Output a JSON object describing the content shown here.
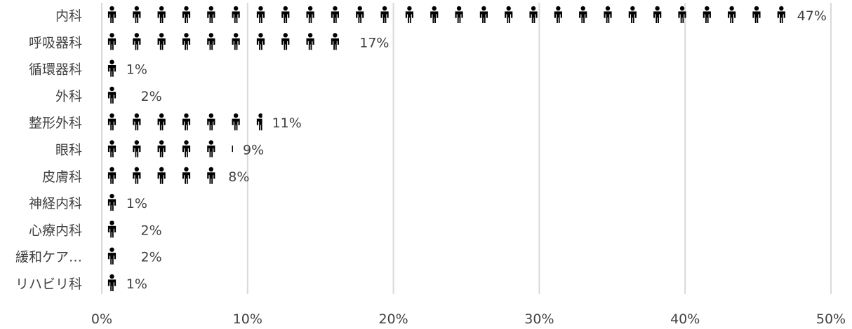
{
  "chart_data": {
    "type": "bar",
    "orientation": "horizontal",
    "categories": [
      "内科",
      "呼吸器科",
      "循環器科",
      "外科",
      "整形外科",
      "眼科",
      "皮膚科",
      "神経内科",
      "心療内科",
      "緩和ケア…",
      "リハビリ科"
    ],
    "values": [
      47,
      17,
      1,
      2,
      11,
      9,
      8,
      1,
      2,
      2,
      1
    ],
    "data_labels": [
      "47%",
      "17%",
      "1%",
      "2%",
      "11%",
      "9%",
      "8%",
      "1%",
      "2%",
      "2%",
      "1%"
    ],
    "x_ticks": [
      "0%",
      "10%",
      "20%",
      "30%",
      "40%",
      "50%"
    ],
    "xlim": [
      0,
      50
    ],
    "unit_per_icon": 1.7,
    "grid": true,
    "mark": "person-icon",
    "colors": {
      "icon": "#000000",
      "grid": "#d9d9d9",
      "text": "#404040"
    }
  }
}
